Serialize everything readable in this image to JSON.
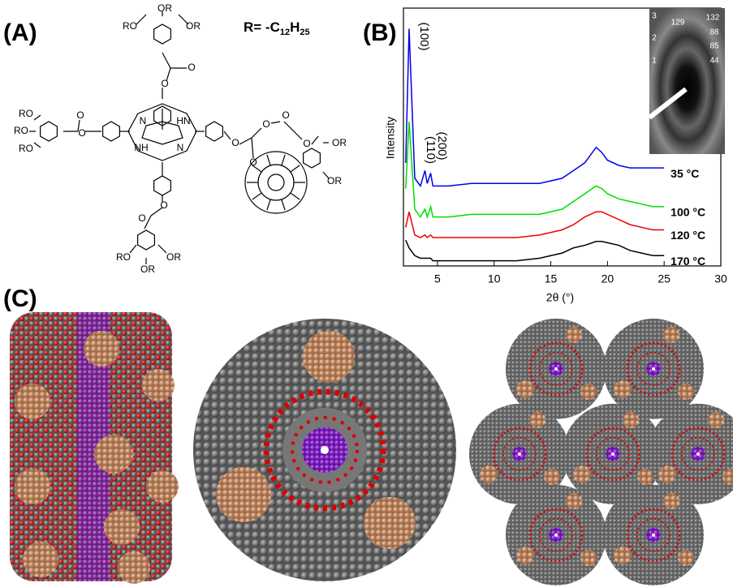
{
  "panel_labels": [
    "(A)",
    "(B)",
    "(C)"
  ],
  "panel_a": {
    "r_group": [
      "R= -C",
      "12",
      "H",
      "25"
    ],
    "atoms": [
      "OR",
      "RO",
      "OR",
      "O",
      "O",
      "RO",
      "RO",
      "RO",
      "O",
      "O",
      "N",
      "HN",
      "NH",
      "N",
      "O",
      "O",
      "O",
      "O",
      "O",
      "OR",
      "OR",
      "O",
      "O",
      "RO",
      "OR",
      "OR"
    ]
  },
  "inset_labels": [
    "3",
    "129",
    "132",
    "2",
    "88",
    "85",
    "1",
    "44"
  ],
  "chart_data": {
    "type": "line",
    "xlabel": "2θ (°)",
    "ylabel": "Intensity",
    "x": [
      2.2,
      2.5,
      3,
      3.5,
      3.9,
      4.1,
      4.4,
      4.6,
      5,
      6,
      8,
      10,
      12,
      14,
      16,
      17,
      18,
      19,
      19.5,
      20,
      21,
      22,
      23,
      24,
      25
    ],
    "series": [
      {
        "name": "35 °C",
        "color": "#0000ee",
        "values": [
          40,
          92,
          34,
          31,
          37,
          32,
          36,
          31,
          31,
          31,
          32,
          32,
          32,
          32,
          34,
          37,
          40,
          46,
          44,
          41,
          39,
          38,
          38,
          38,
          38
        ]
      },
      {
        "name": "100 °C",
        "color": "#00dd00",
        "values": [
          30,
          56,
          22,
          19,
          22,
          19,
          23,
          19,
          19,
          19,
          20,
          20,
          20,
          20,
          22,
          25,
          28,
          31,
          30,
          28,
          26,
          25,
          24,
          23,
          23
        ]
      },
      {
        "name": "120 °C",
        "color": "#ee0000",
        "values": [
          15,
          21,
          12,
          11,
          12,
          11,
          12,
          11,
          11,
          11,
          11,
          11,
          11,
          12,
          14,
          16,
          19,
          21,
          21,
          20,
          18,
          16,
          15,
          14,
          14
        ]
      },
      {
        "name": "170 °C",
        "color": "#000000",
        "values": [
          10,
          7,
          4,
          3,
          3,
          3,
          3,
          2,
          2,
          2,
          2,
          2,
          2,
          3,
          5,
          7,
          8,
          9.5,
          9.5,
          9,
          8,
          6,
          5,
          4,
          4
        ]
      }
    ],
    "annotations": [
      "(100)",
      "(110)",
      "(200)"
    ],
    "xlim": [
      2,
      30
    ],
    "ylim": [
      0,
      100
    ],
    "xticks": [
      5,
      10,
      15,
      20,
      25,
      30
    ]
  }
}
